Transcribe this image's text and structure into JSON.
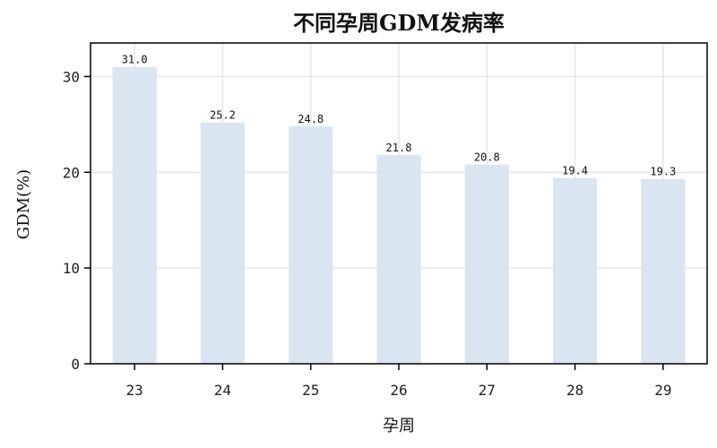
{
  "chart_data": {
    "type": "bar",
    "title": "不同孕周GDM发病率",
    "xlabel": "孕周",
    "ylabel": "GDM(%)",
    "categories": [
      "23",
      "24",
      "25",
      "26",
      "27",
      "28",
      "29"
    ],
    "values": [
      31.0,
      25.2,
      24.8,
      21.8,
      20.8,
      19.4,
      19.3
    ],
    "data_labels": [
      "31.0",
      "25.2",
      "24.8",
      "21.8",
      "20.8",
      "19.4",
      "19.3"
    ],
    "yticks": [
      0,
      10,
      20,
      30
    ],
    "ytick_labels": [
      "0",
      "10",
      "20",
      "30"
    ],
    "ylim": [
      0,
      33.5
    ],
    "grid": true,
    "bar_color": "#dbe5f2",
    "grid_color": "#e6e6e6"
  }
}
